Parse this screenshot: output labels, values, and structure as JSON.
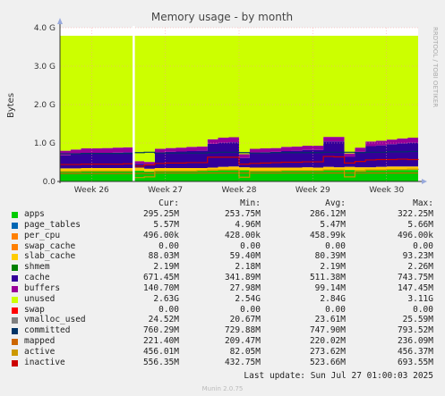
{
  "chart_data": {
    "type": "area",
    "title": "Memory usage - by month",
    "ylabel": "Bytes",
    "y_ticks": [
      "0.0",
      "1.0 G",
      "2.0 G",
      "3.0 G",
      "4.0 G"
    ],
    "x_ticks": [
      "Week 26",
      "Week 27",
      "Week 28",
      "Week 29",
      "Week 30"
    ],
    "ylim": [
      0,
      4.0
    ],
    "stacked": true,
    "side_label": "RRDTOOL / TOBI OETIKER",
    "x_days": [
      0,
      1,
      2,
      3,
      4,
      5,
      6,
      7,
      8,
      9,
      10,
      11,
      12,
      13,
      14,
      15,
      16,
      17,
      18,
      19,
      20,
      21,
      22,
      23,
      24,
      25,
      26,
      27,
      28,
      29,
      30,
      31,
      32,
      33,
      34
    ],
    "series_gb": [
      {
        "name": "apps",
        "color": "#00cc00",
        "values": [
          0.26,
          0.26,
          0.27,
          0.27,
          0.27,
          0.27,
          0.27,
          0.28,
          0.26,
          0.27,
          0.27,
          0.27,
          0.27,
          0.27,
          0.28,
          0.29,
          0.3,
          0.29,
          0.28,
          0.28,
          0.28,
          0.28,
          0.28,
          0.29,
          0.28,
          0.29,
          0.29,
          0.3,
          0.29,
          0.29,
          0.3,
          0.3,
          0.3,
          0.3,
          0.3
        ]
      },
      {
        "name": "shmem",
        "color": "#008000",
        "values": [
          0.0,
          0.0,
          0.0,
          0.0,
          0.0,
          0.0,
          0.0,
          0.0,
          0.0,
          0.0,
          0.0,
          0.0,
          0.0,
          0.0,
          0.0,
          0.0,
          0.0,
          0.0,
          0.0,
          0.0,
          0.0,
          0.0,
          0.0,
          0.0,
          0.0,
          0.0,
          0.0,
          0.0,
          0.0,
          0.0,
          0.0,
          0.0,
          0.0,
          0.0,
          0.0
        ]
      },
      {
        "name": "slab_cache",
        "color": "#ffcc00",
        "values": [
          0.08,
          0.08,
          0.08,
          0.08,
          0.08,
          0.08,
          0.08,
          0.08,
          0.07,
          0.08,
          0.08,
          0.08,
          0.08,
          0.08,
          0.08,
          0.09,
          0.09,
          0.08,
          0.08,
          0.08,
          0.08,
          0.08,
          0.08,
          0.08,
          0.08,
          0.09,
          0.08,
          0.08,
          0.08,
          0.08,
          0.08,
          0.09,
          0.09,
          0.09,
          0.09
        ]
      },
      {
        "name": "cache",
        "color": "#330099",
        "values": [
          0.34,
          0.37,
          0.39,
          0.39,
          0.39,
          0.4,
          0.41,
          0.1,
          0.12,
          0.4,
          0.42,
          0.43,
          0.44,
          0.45,
          0.62,
          0.63,
          0.63,
          0.24,
          0.39,
          0.4,
          0.41,
          0.43,
          0.44,
          0.45,
          0.46,
          0.66,
          0.67,
          0.26,
          0.4,
          0.55,
          0.56,
          0.58,
          0.6,
          0.62,
          0.64
        ]
      },
      {
        "name": "buffers",
        "color": "#990099",
        "values": [
          0.12,
          0.12,
          0.12,
          0.12,
          0.13,
          0.13,
          0.13,
          0.07,
          0.06,
          0.1,
          0.1,
          0.1,
          0.11,
          0.11,
          0.12,
          0.13,
          0.13,
          0.1,
          0.1,
          0.1,
          0.1,
          0.11,
          0.11,
          0.11,
          0.11,
          0.12,
          0.12,
          0.09,
          0.11,
          0.12,
          0.12,
          0.12,
          0.13,
          0.13,
          0.14
        ]
      },
      {
        "name": "unused",
        "color": "#ccff00",
        "values": [
          2.99,
          2.96,
          2.93,
          2.93,
          2.92,
          2.91,
          2.9,
          3.26,
          3.28,
          2.94,
          2.92,
          2.91,
          2.89,
          2.88,
          2.69,
          2.65,
          2.64,
          3.08,
          2.94,
          2.93,
          2.92,
          2.89,
          2.88,
          2.86,
          2.86,
          2.63,
          2.63,
          3.06,
          2.91,
          2.75,
          2.73,
          2.7,
          2.67,
          2.65,
          2.62
        ]
      }
    ],
    "lines_gb": [
      {
        "name": "committed",
        "color": "#003366",
        "values": [
          0.72,
          0.72,
          0.73,
          0.73,
          0.73,
          0.73,
          0.73,
          0.75,
          0.76,
          0.74,
          0.74,
          0.74,
          0.74,
          0.74,
          0.75,
          0.76,
          0.76,
          0.75,
          0.74,
          0.74,
          0.75,
          0.75,
          0.75,
          0.75,
          0.75,
          0.76,
          0.76,
          0.76,
          0.75,
          0.76,
          0.76,
          0.77,
          0.77,
          0.78,
          0.78
        ]
      },
      {
        "name": "mapped",
        "color": "#cc6600",
        "values": [
          0.21,
          0.21,
          0.21,
          0.21,
          0.21,
          0.21,
          0.21,
          0.21,
          0.21,
          0.22,
          0.22,
          0.22,
          0.22,
          0.22,
          0.22,
          0.22,
          0.22,
          0.22,
          0.22,
          0.22,
          0.22,
          0.22,
          0.22,
          0.22,
          0.22,
          0.22,
          0.22,
          0.22,
          0.22,
          0.22,
          0.22,
          0.22,
          0.22,
          0.22,
          0.22
        ]
      },
      {
        "name": "active",
        "color": "#cc9900",
        "values": [
          0.26,
          0.26,
          0.27,
          0.27,
          0.27,
          0.27,
          0.27,
          0.1,
          0.12,
          0.27,
          0.27,
          0.27,
          0.27,
          0.28,
          0.3,
          0.3,
          0.3,
          0.11,
          0.27,
          0.27,
          0.27,
          0.28,
          0.28,
          0.28,
          0.28,
          0.3,
          0.3,
          0.12,
          0.27,
          0.3,
          0.3,
          0.31,
          0.31,
          0.32,
          0.33
        ]
      },
      {
        "name": "inactive",
        "color": "#cc0000",
        "values": [
          0.44,
          0.44,
          0.45,
          0.45,
          0.45,
          0.45,
          0.46,
          0.4,
          0.43,
          0.47,
          0.48,
          0.48,
          0.49,
          0.49,
          0.63,
          0.63,
          0.63,
          0.45,
          0.47,
          0.48,
          0.49,
          0.5,
          0.5,
          0.51,
          0.51,
          0.65,
          0.64,
          0.48,
          0.52,
          0.56,
          0.57,
          0.57,
          0.58,
          0.57,
          0.56
        ]
      }
    ],
    "now_day": 7
  },
  "legend": {
    "headers": {
      "cur": "Cur:",
      "min": "Min:",
      "avg": "Avg:",
      "max": "Max:"
    },
    "rows": [
      {
        "name": "apps",
        "color": "#00cc00",
        "cur": "295.25M",
        "min": "253.75M",
        "avg": "286.12M",
        "max": "322.25M"
      },
      {
        "name": "page_tables",
        "color": "#0066b3",
        "cur": "5.57M",
        "min": "4.96M",
        "avg": "5.47M",
        "max": "5.66M"
      },
      {
        "name": "per_cpu",
        "color": "#ff8000",
        "cur": "496.00k",
        "min": "428.00k",
        "avg": "458.99k",
        "max": "496.00k"
      },
      {
        "name": "swap_cache",
        "color": "#ff8000",
        "cur": "0.00",
        "min": "0.00",
        "avg": "0.00",
        "max": "0.00"
      },
      {
        "name": "slab_cache",
        "color": "#ffcc00",
        "cur": "88.03M",
        "min": "59.40M",
        "avg": "80.39M",
        "max": "93.23M"
      },
      {
        "name": "shmem",
        "color": "#008000",
        "cur": "2.19M",
        "min": "2.18M",
        "avg": "2.19M",
        "max": "2.26M"
      },
      {
        "name": "cache",
        "color": "#330099",
        "cur": "671.45M",
        "min": "341.89M",
        "avg": "511.38M",
        "max": "743.75M"
      },
      {
        "name": "buffers",
        "color": "#990099",
        "cur": "140.70M",
        "min": "27.98M",
        "avg": "99.14M",
        "max": "147.45M"
      },
      {
        "name": "unused",
        "color": "#ccff00",
        "cur": "2.63G",
        "min": "2.54G",
        "avg": "2.84G",
        "max": "3.11G"
      },
      {
        "name": "swap",
        "color": "#ff0000",
        "cur": "0.00",
        "min": "0.00",
        "avg": "0.00",
        "max": "0.00"
      },
      {
        "name": "vmalloc_used",
        "color": "#808080",
        "cur": "24.52M",
        "min": "20.67M",
        "avg": "23.61M",
        "max": "25.59M"
      },
      {
        "name": "committed",
        "color": "#003366",
        "cur": "760.29M",
        "min": "729.88M",
        "avg": "747.90M",
        "max": "793.52M"
      },
      {
        "name": "mapped",
        "color": "#cc6600",
        "cur": "221.40M",
        "min": "209.47M",
        "avg": "220.02M",
        "max": "236.09M"
      },
      {
        "name": "active",
        "color": "#cc9900",
        "cur": "456.01M",
        "min": "82.05M",
        "avg": "273.62M",
        "max": "456.37M"
      },
      {
        "name": "inactive",
        "color": "#cc0000",
        "cur": "556.35M",
        "min": "432.75M",
        "avg": "523.66M",
        "max": "693.55M"
      }
    ]
  },
  "footer": {
    "last_update": "Last update: Sun Jul 27 01:00:03 2025",
    "munin": "Munin 2.0.75"
  }
}
